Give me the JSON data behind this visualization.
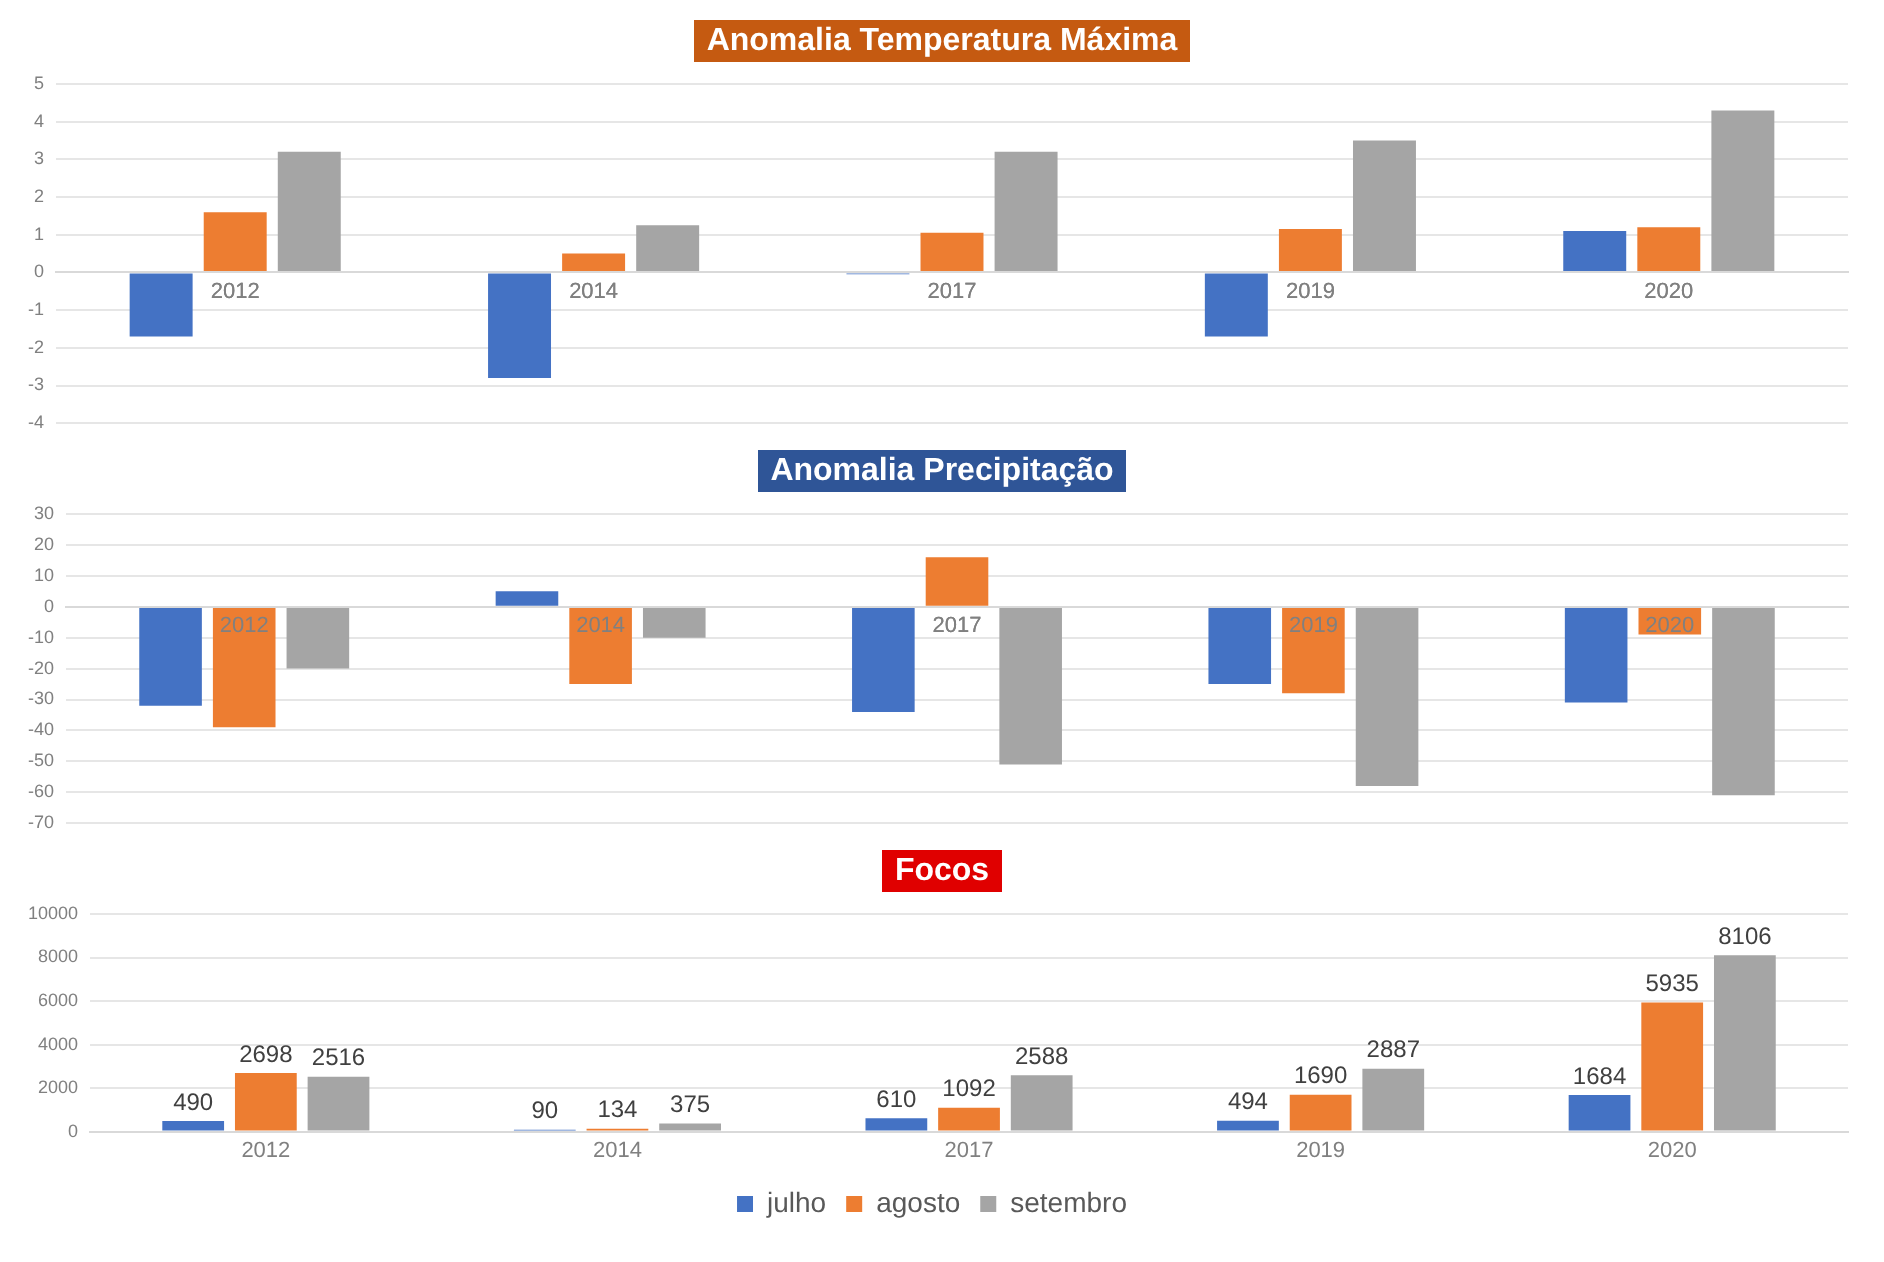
{
  "chart_data": [
    {
      "type": "bar",
      "title": "Anomalia Temperatura Máxima",
      "categories": [
        "2012",
        "2014",
        "2017",
        "2019",
        "2020"
      ],
      "series": [
        {
          "color": "#4472c4",
          "values": [
            -1.7,
            -2.8,
            -0.05,
            -1.7,
            1.1
          ]
        },
        {
          "color": "#ed7d31",
          "values": [
            1.6,
            0.5,
            1.05,
            1.15,
            1.2
          ]
        },
        {
          "color": "#a5a5a5",
          "values": [
            3.2,
            1.25,
            3.2,
            3.5,
            4.3
          ]
        }
      ],
      "ylim": [
        -4,
        5
      ],
      "yticks": [
        -4,
        -3,
        -2,
        -1,
        0,
        1,
        2,
        3,
        4,
        5
      ],
      "grid": "y",
      "legend": false
    },
    {
      "type": "bar",
      "title": "Anomalia Precipitação",
      "categories": [
        "2012",
        "2014",
        "2017",
        "2019",
        "2020"
      ],
      "series": [
        {
          "color": "#4472c4",
          "values": [
            -32,
            5,
            -34,
            -25,
            -31
          ]
        },
        {
          "color": "#ed7d31",
          "values": [
            -39,
            -25,
            16,
            -28,
            -9
          ]
        },
        {
          "color": "#a5a5a5",
          "values": [
            -20,
            -10,
            -51,
            -58,
            -61
          ]
        }
      ],
      "ylim": [
        -70,
        30
      ],
      "yticks": [
        -70,
        -60,
        -50,
        -40,
        -30,
        -20,
        -10,
        0,
        10,
        20,
        30
      ],
      "grid": "y",
      "legend": false
    },
    {
      "type": "bar",
      "title": "Focos",
      "categories": [
        "2012",
        "2014",
        "2017",
        "2019",
        "2020"
      ],
      "series": [
        {
          "name": "julho",
          "color": "#4472c4",
          "values": [
            490,
            90,
            610,
            494,
            1684
          ]
        },
        {
          "name": "agosto",
          "color": "#ed7d31",
          "values": [
            2698,
            134,
            1092,
            1690,
            5935
          ]
        },
        {
          "name": "setembro",
          "color": "#a5a5a5",
          "values": [
            2516,
            375,
            2588,
            2887,
            8106
          ]
        }
      ],
      "ylim": [
        0,
        10000
      ],
      "yticks": [
        0,
        2000,
        4000,
        6000,
        8000,
        10000
      ],
      "grid": "y",
      "data_labels": true,
      "legend": "bottom"
    }
  ]
}
